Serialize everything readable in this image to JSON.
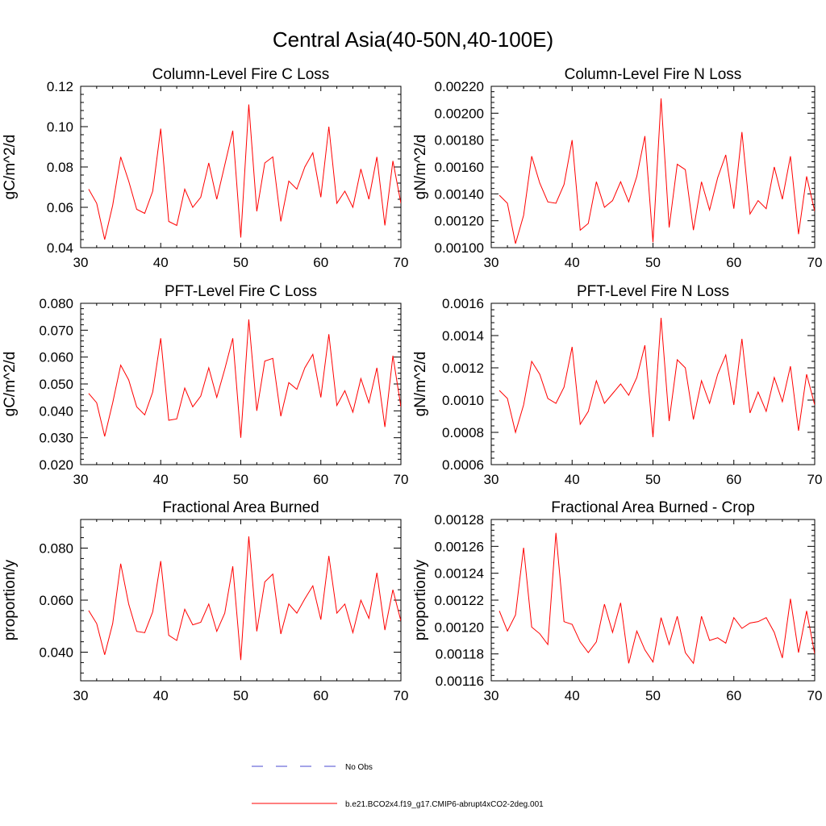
{
  "figure_title": "Central Asia(40-50N,40-100E)",
  "legend": {
    "items": [
      {
        "label": "No Obs",
        "color": "#4a4ad0",
        "style": "dashed"
      },
      {
        "label": "b.e21.BCO2x4.f19_g17.CMIP6-abrupt4xCO2-2deg.001",
        "color": "#ff0000",
        "style": "solid"
      }
    ]
  },
  "chart_data": [
    {
      "type": "line",
      "title": "Column-Level Fire C Loss",
      "ylabel": "gC/m^2/d",
      "xlim": [
        30,
        70
      ],
      "ylim": [
        0.04,
        0.12
      ],
      "xticks": [
        30,
        40,
        50,
        60,
        70
      ],
      "yticks": [
        0.04,
        0.06,
        0.08,
        0.1,
        0.12
      ],
      "ytick_labels": [
        "0.04",
        "0.06",
        "0.08",
        "0.10",
        "0.12"
      ],
      "x_start": 31,
      "series": [
        {
          "name": "b.e21.BCO2x4.f19_g17.CMIP6-abrupt4xCO2-2deg.001",
          "color": "#ff0000",
          "values": [
            0.069,
            0.062,
            0.044,
            0.061,
            0.085,
            0.073,
            0.059,
            0.057,
            0.068,
            0.099,
            0.053,
            0.051,
            0.069,
            0.06,
            0.065,
            0.082,
            0.064,
            0.081,
            0.098,
            0.045,
            0.111,
            0.058,
            0.082,
            0.085,
            0.053,
            0.073,
            0.069,
            0.08,
            0.087,
            0.065,
            0.1,
            0.062,
            0.068,
            0.06,
            0.079,
            0.064,
            0.085,
            0.051,
            0.083,
            0.062
          ]
        }
      ]
    },
    {
      "type": "line",
      "title": "Column-Level Fire N Loss",
      "ylabel": "gN/m^2/d",
      "xlim": [
        30,
        70
      ],
      "ylim": [
        0.001,
        0.0022
      ],
      "xticks": [
        30,
        40,
        50,
        60,
        70
      ],
      "yticks": [
        0.001,
        0.0012,
        0.0014,
        0.0016,
        0.0018,
        0.002,
        0.0022
      ],
      "ytick_labels": [
        "0.00100",
        "0.00120",
        "0.00140",
        "0.00160",
        "0.00180",
        "0.00200",
        "0.00220"
      ],
      "x_start": 31,
      "series": [
        {
          "name": "b.e21.BCO2x4.f19_g17.CMIP6-abrupt4xCO2-2deg.001",
          "color": "#ff0000",
          "values": [
            0.00139,
            0.00133,
            0.00103,
            0.00124,
            0.00168,
            0.00148,
            0.00134,
            0.00133,
            0.00147,
            0.0018,
            0.00113,
            0.00118,
            0.00149,
            0.0013,
            0.00135,
            0.00149,
            0.00134,
            0.00153,
            0.00183,
            0.00104,
            0.00211,
            0.00115,
            0.00162,
            0.00158,
            0.00113,
            0.00149,
            0.00128,
            0.00152,
            0.00169,
            0.00129,
            0.00186,
            0.00125,
            0.00135,
            0.00129,
            0.0016,
            0.00136,
            0.00168,
            0.0011,
            0.00153,
            0.00127
          ]
        }
      ]
    },
    {
      "type": "line",
      "title": "PFT-Level Fire C Loss",
      "ylabel": "gC/m^2/d",
      "xlim": [
        30,
        70
      ],
      "ylim": [
        0.02,
        0.08
      ],
      "xticks": [
        30,
        40,
        50,
        60,
        70
      ],
      "yticks": [
        0.02,
        0.03,
        0.04,
        0.05,
        0.06,
        0.07,
        0.08
      ],
      "ytick_labels": [
        "0.020",
        "0.030",
        "0.040",
        "0.050",
        "0.060",
        "0.070",
        "0.080"
      ],
      "x_start": 31,
      "series": [
        {
          "name": "b.e21.BCO2x4.f19_g17.CMIP6-abrupt4xCO2-2deg.001",
          "color": "#ff0000",
          "values": [
            0.0465,
            0.043,
            0.0305,
            0.043,
            0.057,
            0.0515,
            0.0415,
            0.0385,
            0.047,
            0.067,
            0.0365,
            0.037,
            0.0485,
            0.0415,
            0.0455,
            0.056,
            0.045,
            0.0555,
            0.067,
            0.03,
            0.074,
            0.04,
            0.0585,
            0.0595,
            0.038,
            0.0505,
            0.048,
            0.056,
            0.061,
            0.045,
            0.0685,
            0.042,
            0.0475,
            0.0395,
            0.052,
            0.043,
            0.056,
            0.034,
            0.0605,
            0.0415
          ]
        }
      ]
    },
    {
      "type": "line",
      "title": "PFT-Level Fire N Loss",
      "ylabel": "gN/m^2/d",
      "xlim": [
        30,
        70
      ],
      "ylim": [
        0.0006,
        0.0016
      ],
      "xticks": [
        30,
        40,
        50,
        60,
        70
      ],
      "yticks": [
        0.0006,
        0.0008,
        0.001,
        0.0012,
        0.0014,
        0.0016
      ],
      "ytick_labels": [
        "0.0006",
        "0.0008",
        "0.0010",
        "0.0012",
        "0.0014",
        "0.0016"
      ],
      "x_start": 31,
      "series": [
        {
          "name": "b.e21.BCO2x4.f19_g17.CMIP6-abrupt4xCO2-2deg.001",
          "color": "#ff0000",
          "values": [
            0.00106,
            0.00101,
            0.0008,
            0.00097,
            0.00124,
            0.00116,
            0.00101,
            0.00098,
            0.00108,
            0.00133,
            0.00085,
            0.00093,
            0.00112,
            0.00098,
            0.00104,
            0.0011,
            0.00103,
            0.00114,
            0.00134,
            0.00077,
            0.00151,
            0.00087,
            0.00125,
            0.0012,
            0.00088,
            0.00112,
            0.00098,
            0.00116,
            0.00128,
            0.00097,
            0.00138,
            0.00092,
            0.00105,
            0.00093,
            0.00114,
            0.00099,
            0.00121,
            0.00081,
            0.00116,
            0.00097
          ]
        }
      ]
    },
    {
      "type": "line",
      "title": "Fractional Area Burned",
      "ylabel": "proportion/y",
      "xlim": [
        30,
        70
      ],
      "ylim": [
        0.029,
        0.091
      ],
      "xticks": [
        30,
        40,
        50,
        60,
        70
      ],
      "yticks": [
        0.04,
        0.06,
        0.08
      ],
      "ytick_labels": [
        "0.040",
        "0.060",
        "0.080"
      ],
      "x_start": 31,
      "series": [
        {
          "name": "b.e21.BCO2x4.f19_g17.CMIP6-abrupt4xCO2-2deg.001",
          "color": "#ff0000",
          "values": [
            0.056,
            0.051,
            0.039,
            0.051,
            0.074,
            0.0585,
            0.048,
            0.0475,
            0.0555,
            0.075,
            0.0465,
            0.0445,
            0.0565,
            0.0505,
            0.0515,
            0.0585,
            0.048,
            0.055,
            0.073,
            0.037,
            0.0845,
            0.048,
            0.067,
            0.07,
            0.047,
            0.0585,
            0.055,
            0.0605,
            0.0655,
            0.0525,
            0.077,
            0.055,
            0.0585,
            0.0475,
            0.06,
            0.053,
            0.0705,
            0.0485,
            0.064,
            0.052
          ]
        }
      ]
    },
    {
      "type": "line",
      "title": "Fractional Area Burned - Crop",
      "ylabel": "proportion/y",
      "xlim": [
        30,
        70
      ],
      "ylim": [
        0.00116,
        0.00128
      ],
      "xticks": [
        30,
        40,
        50,
        60,
        70
      ],
      "yticks": [
        0.00116,
        0.00118,
        0.0012,
        0.00122,
        0.00124,
        0.00126,
        0.00128
      ],
      "ytick_labels": [
        "0.00116",
        "0.00118",
        "0.00120",
        "0.00122",
        "0.00124",
        "0.00126",
        "0.00128"
      ],
      "x_start": 31,
      "series": [
        {
          "name": "b.e21.BCO2x4.f19_g17.CMIP6-abrupt4xCO2-2deg.001",
          "color": "#ff0000",
          "values": [
            0.001212,
            0.001197,
            0.001209,
            0.001259,
            0.0012,
            0.001195,
            0.001187,
            0.00127,
            0.001204,
            0.001202,
            0.001189,
            0.001181,
            0.001189,
            0.001217,
            0.001196,
            0.001218,
            0.001173,
            0.001197,
            0.001183,
            0.001174,
            0.001207,
            0.001187,
            0.001208,
            0.001181,
            0.001173,
            0.001208,
            0.00119,
            0.001192,
            0.001188,
            0.001207,
            0.001199,
            0.001203,
            0.001204,
            0.001207,
            0.001196,
            0.001177,
            0.001221,
            0.001181,
            0.001212,
            0.00118
          ]
        }
      ]
    }
  ]
}
